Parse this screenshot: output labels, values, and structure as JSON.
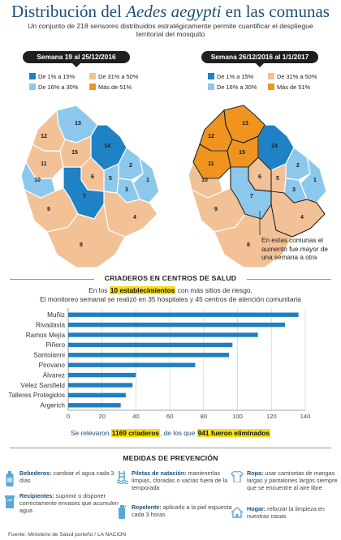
{
  "header": {
    "title_pre": "Distribución del ",
    "title_species": "Aedes aegypti",
    "title_post": " en las comunas",
    "subtitle": "Un conjunto de 218 sensores distribuidos estratégicamente permite cuantificar el despliegue territorial del mosquito"
  },
  "colors": {
    "dark_blue": "#1f82c4",
    "light_blue": "#8cc8ec",
    "peach": "#f2c196",
    "orange": "#f0941e",
    "title_blue": "#1c4f7a",
    "bar": "#1f7fc0",
    "highlight": "#f7df17"
  },
  "maps": [
    {
      "week": "Semana 19 al 25/12/2016",
      "legend": [
        {
          "label": "De 1% a 15%",
          "color": "#1f82c4"
        },
        {
          "label": "De 31% a 50%",
          "color": "#f2c196"
        },
        {
          "label": "De 16% a 30%",
          "color": "#8cc8ec"
        },
        {
          "label": "Más de 51%",
          "color": "#f0941e"
        }
      ]
    },
    {
      "week": "Semana 26/12/2016 al 1/1/2017",
      "legend": [
        {
          "label": "De 1% a 15%",
          "color": "#1f82c4"
        },
        {
          "label": "De 31% a 50%",
          "color": "#f2c196"
        },
        {
          "label": "De 16% a 30%",
          "color": "#8cc8ec"
        },
        {
          "label": "Más de 51%",
          "color": "#f0941e"
        }
      ],
      "note": "En estas comunas el aumento fue mayor de una semana a otra"
    }
  ],
  "comunas": [
    "1",
    "2",
    "3",
    "4",
    "5",
    "6",
    "7",
    "8",
    "9",
    "10",
    "11",
    "12",
    "13",
    "14",
    "15"
  ],
  "section_title": "CRIADEROS EN CENTROS DE SALUD",
  "lead": {
    "pre": "En los ",
    "highlight": "10 establecimientos",
    "post": " con más sitios de riesgo.",
    "line2": "El monitoreo semanal se realizó en 35 hospitales y 45 centros de atención comunitaria"
  },
  "chart_data": {
    "type": "bar",
    "orientation": "horizontal",
    "categories": [
      "Muñiz",
      "Rivadavia",
      "Ramos Mejía",
      "Piñero",
      "Santoianni",
      "Pirovano",
      "Álvarez",
      "Vélez Sarsfield",
      "Talleres Protegidos",
      "Argerich"
    ],
    "values": [
      136,
      128,
      112,
      97,
      95,
      75,
      40,
      38,
      34,
      31
    ],
    "xlim": [
      0,
      140
    ],
    "xticks": [
      "0",
      "20",
      "40",
      "60",
      "80",
      "100",
      "120",
      "140"
    ],
    "grid": true
  },
  "total": {
    "pre": "Se relevaron ",
    "highlight1": "1169 criaderos",
    "mid": ", de los que ",
    "highlight2": "941 fueron eliminados"
  },
  "measures": {
    "title": "MEDIDAS DE PREVENCIÓN",
    "items": [
      {
        "name": "Bebederos:",
        "text": "cambiar el agua cada 3 días",
        "icon": "water-bottle-icon"
      },
      {
        "name": "Recipientes:",
        "text": "suprimir o disponer correctamente envases que acumulen agua",
        "icon": "container-icon"
      },
      {
        "name": "Piletas de natación:",
        "text": "mantenerlas limpias, cloradas o vacías fuera de la temporada",
        "icon": "pool-icon"
      },
      {
        "name": "Repelente:",
        "text": "aplicarlo a la piel expuesta cada 3 horas",
        "icon": "repellent-icon"
      },
      {
        "name": "Ropa:",
        "text": "usar camisetas de mangas largas y pantalones largos siempre que se encuentre al aire libre",
        "icon": "clothing-icon"
      },
      {
        "name": "Hogar:",
        "text": "reforzar la limpieza en nuestras casas",
        "icon": "house-icon"
      }
    ]
  },
  "source": "Fuente: Ministerio de Salud porteño / LA NACION"
}
